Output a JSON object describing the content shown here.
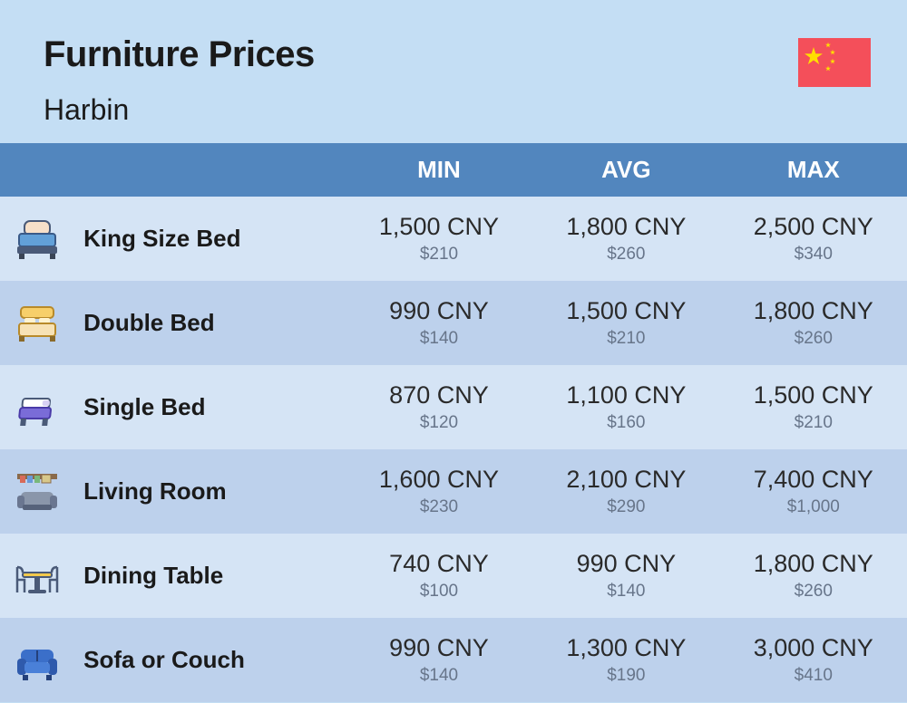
{
  "colors": {
    "page_bg": "#c4def4",
    "title_color": "#1a1a1a",
    "subtitle_color": "#1a1a1a",
    "header_row_bg": "#5286be",
    "header_text": "#ffffff",
    "row_odd_bg": "#d5e4f5",
    "row_even_bg": "#bdd1ec",
    "primary_text": "#2a2a2a",
    "secondary_text": "#67758a",
    "flag_red": "#f44f5a",
    "flag_yellow": "#ffde00"
  },
  "header": {
    "title": "Furniture Prices",
    "subtitle": "Harbin"
  },
  "columns": {
    "min": "MIN",
    "avg": "AVG",
    "max": "MAX"
  },
  "rows": [
    {
      "icon": "king-bed",
      "name": "King Size Bed",
      "min_primary": "1,500 CNY",
      "min_secondary": "$210",
      "avg_primary": "1,800 CNY",
      "avg_secondary": "$260",
      "max_primary": "2,500 CNY",
      "max_secondary": "$340"
    },
    {
      "icon": "double-bed",
      "name": "Double Bed",
      "min_primary": "990 CNY",
      "min_secondary": "$140",
      "avg_primary": "1,500 CNY",
      "avg_secondary": "$210",
      "max_primary": "1,800 CNY",
      "max_secondary": "$260"
    },
    {
      "icon": "single-bed",
      "name": "Single Bed",
      "min_primary": "870 CNY",
      "min_secondary": "$120",
      "avg_primary": "1,100 CNY",
      "avg_secondary": "$160",
      "max_primary": "1,500 CNY",
      "max_secondary": "$210"
    },
    {
      "icon": "living-room",
      "name": "Living Room",
      "min_primary": "1,600 CNY",
      "min_secondary": "$230",
      "avg_primary": "2,100 CNY",
      "avg_secondary": "$290",
      "max_primary": "7,400 CNY",
      "max_secondary": "$1,000"
    },
    {
      "icon": "dining-table",
      "name": "Dining Table",
      "min_primary": "740 CNY",
      "min_secondary": "$100",
      "avg_primary": "990 CNY",
      "avg_secondary": "$140",
      "max_primary": "1,800 CNY",
      "max_secondary": "$260"
    },
    {
      "icon": "sofa",
      "name": "Sofa or Couch",
      "min_primary": "990 CNY",
      "min_secondary": "$140",
      "avg_primary": "1,300 CNY",
      "avg_secondary": "$190",
      "max_primary": "3,000 CNY",
      "max_secondary": "$410"
    }
  ]
}
